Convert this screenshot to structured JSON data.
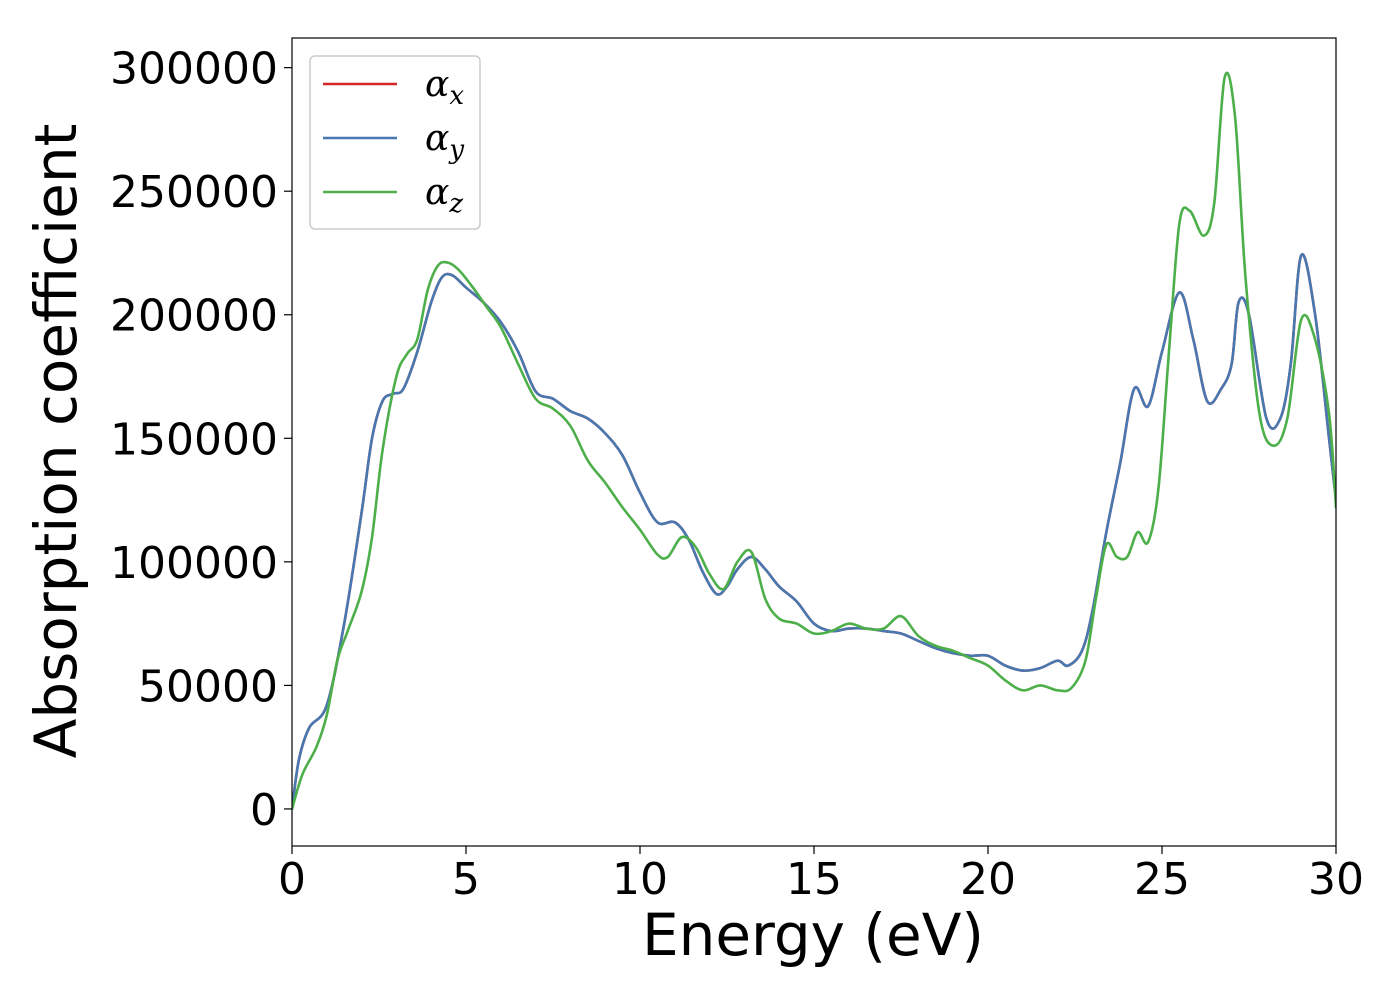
{
  "chart_data": {
    "type": "line",
    "title": "",
    "xlabel": "Energy (eV)",
    "ylabel": "Absorption coefficient",
    "xlim": [
      0,
      30
    ],
    "ylim": [
      -15000,
      312000
    ],
    "xticks": [
      0,
      5,
      10,
      15,
      20,
      25,
      30
    ],
    "yticks": [
      0,
      50000,
      100000,
      150000,
      200000,
      250000,
      300000
    ],
    "grid": false,
    "legend": "top-left",
    "series": [
      {
        "name": "α",
        "subscript": "x",
        "color": "#d62728",
        "x": [
          0,
          0.2,
          0.5,
          1,
          1.5,
          2,
          2.3,
          2.6,
          2.9,
          3.2,
          3.6,
          4,
          4.3,
          4.6,
          5,
          5.5,
          6,
          6.5,
          7,
          7.5,
          8,
          8.5,
          9,
          9.5,
          10,
          10.5,
          11,
          11.4,
          11.8,
          12.2,
          12.5,
          12.8,
          13.2,
          13.6,
          14,
          14.5,
          15,
          15.5,
          16,
          16.5,
          17,
          17.5,
          18,
          18.5,
          19,
          19.5,
          20,
          20.5,
          21,
          21.5,
          22,
          22.3,
          22.7,
          23,
          23.4,
          23.8,
          24.2,
          24.6,
          25,
          25.5,
          25.9,
          26.3,
          26.7,
          27,
          27.2,
          27.5,
          28,
          28.4,
          28.7,
          29,
          29.4,
          29.8,
          30
        ],
        "values": [
          0,
          20000,
          33000,
          42000,
          75000,
          120000,
          150000,
          165000,
          168000,
          170000,
          185000,
          205000,
          215000,
          216000,
          211000,
          205000,
          197000,
          185000,
          169000,
          166000,
          161000,
          158000,
          152000,
          143000,
          128000,
          116000,
          116000,
          109000,
          96000,
          87000,
          90000,
          97000,
          102000,
          97000,
          90000,
          84000,
          75000,
          72000,
          73000,
          73000,
          72000,
          71000,
          68000,
          65000,
          63000,
          62000,
          62000,
          58000,
          56000,
          57000,
          60000,
          58000,
          64000,
          80000,
          112000,
          140000,
          170000,
          163000,
          185000,
          209000,
          190000,
          165000,
          170000,
          180000,
          205000,
          200000,
          158000,
          158000,
          180000,
          224000,
          200000,
          150000,
          125000
        ]
      },
      {
        "name": "α",
        "subscript": "y",
        "color": "#4878b0",
        "x": [
          0,
          0.2,
          0.5,
          1,
          1.5,
          2,
          2.3,
          2.6,
          2.9,
          3.2,
          3.6,
          4,
          4.3,
          4.6,
          5,
          5.5,
          6,
          6.5,
          7,
          7.5,
          8,
          8.5,
          9,
          9.5,
          10,
          10.5,
          11,
          11.4,
          11.8,
          12.2,
          12.5,
          12.8,
          13.2,
          13.6,
          14,
          14.5,
          15,
          15.5,
          16,
          16.5,
          17,
          17.5,
          18,
          18.5,
          19,
          19.5,
          20,
          20.5,
          21,
          21.5,
          22,
          22.3,
          22.7,
          23,
          23.4,
          23.8,
          24.2,
          24.6,
          25,
          25.5,
          25.9,
          26.3,
          26.7,
          27,
          27.2,
          27.5,
          28,
          28.4,
          28.7,
          29,
          29.4,
          29.8,
          30
        ],
        "values": [
          0,
          20000,
          33000,
          42000,
          75000,
          120000,
          150000,
          165000,
          168000,
          170000,
          185000,
          205000,
          215000,
          216000,
          211000,
          205000,
          197000,
          185000,
          169000,
          166000,
          161000,
          158000,
          152000,
          143000,
          128000,
          116000,
          116000,
          109000,
          96000,
          87000,
          90000,
          97000,
          102000,
          97000,
          90000,
          84000,
          75000,
          72000,
          73000,
          73000,
          72000,
          71000,
          68000,
          65000,
          63000,
          62000,
          62000,
          58000,
          56000,
          57000,
          60000,
          58000,
          64000,
          80000,
          112000,
          140000,
          170000,
          163000,
          185000,
          209000,
          190000,
          165000,
          170000,
          180000,
          205000,
          200000,
          158000,
          158000,
          180000,
          224000,
          200000,
          150000,
          125000
        ]
      },
      {
        "name": "α",
        "subscript": "z",
        "color": "#4daf4a",
        "x": [
          0,
          0.3,
          0.7,
          1,
          1.3,
          1.6,
          2,
          2.3,
          2.6,
          3,
          3.3,
          3.6,
          3.9,
          4.2,
          4.5,
          4.8,
          5.2,
          5.6,
          6,
          6.5,
          7,
          7.5,
          8,
          8.5,
          9,
          9.5,
          10,
          10.5,
          10.8,
          11.2,
          11.6,
          12,
          12.4,
          12.8,
          13.2,
          13.6,
          14,
          14.5,
          15,
          15.5,
          16,
          16.5,
          17,
          17.5,
          18,
          18.5,
          19,
          19.5,
          20,
          20.5,
          21,
          21.5,
          22,
          22.4,
          22.8,
          23.1,
          23.4,
          23.7,
          24,
          24.3,
          24.6,
          24.9,
          25.2,
          25.5,
          25.8,
          26.2,
          26.5,
          26.8,
          27.1,
          27.4,
          27.8,
          28.2,
          28.6,
          29,
          29.4,
          29.8,
          30
        ],
        "values": [
          0,
          14000,
          25000,
          38000,
          60000,
          72000,
          88000,
          110000,
          145000,
          175000,
          184000,
          190000,
          210000,
          220000,
          221000,
          218000,
          211000,
          203000,
          195000,
          180000,
          166000,
          162000,
          155000,
          141000,
          132000,
          122000,
          113000,
          103000,
          102000,
          110000,
          106000,
          95000,
          89000,
          100000,
          104000,
          85000,
          77000,
          75000,
          71000,
          72000,
          75000,
          73000,
          73000,
          78000,
          70000,
          66000,
          64000,
          61000,
          58000,
          52000,
          48000,
          50000,
          48000,
          49000,
          60000,
          85000,
          107000,
          102000,
          102000,
          112000,
          108000,
          130000,
          185000,
          237000,
          242000,
          232000,
          245000,
          296000,
          280000,
          215000,
          160000,
          147000,
          158000,
          198000,
          190000,
          160000,
          122000
        ]
      }
    ]
  }
}
